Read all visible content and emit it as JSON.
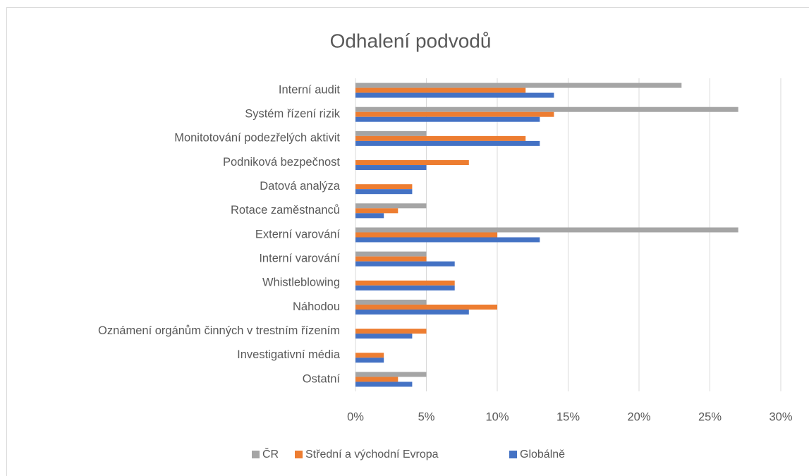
{
  "chart_data": {
    "type": "hbar",
    "title": "Odhalení podvodů",
    "categories": [
      "Interní audit",
      "Systém řízení rizik",
      "Monitotování podezřelých aktivit",
      "Podniková bezpečnost",
      "Datová analýza",
      "Rotace zaměstnanců",
      "Externí varování",
      "Interní varování",
      "Whistleblowing",
      "Náhodou",
      "Oznámení orgánům činných v trestním řízením",
      "Investigativní média",
      "Ostatní"
    ],
    "series": [
      {
        "name": "ČR",
        "color": "#a5a5a5",
        "values": [
          23,
          27,
          5,
          0,
          0,
          5,
          27,
          5,
          0,
          5,
          0,
          0,
          5
        ]
      },
      {
        "name": "Střední a východní Evropa",
        "color": "#ed7d31",
        "values": [
          12,
          14,
          12,
          8,
          4,
          3,
          10,
          5,
          7,
          10,
          5,
          2,
          3
        ]
      },
      {
        "name": "Globálně",
        "color": "#4472c4",
        "values": [
          14,
          13,
          13,
          5,
          4,
          2,
          13,
          7,
          7,
          8,
          4,
          2,
          4
        ]
      }
    ],
    "xlim": [
      0,
      30
    ],
    "xticks": [
      {
        "value": 0,
        "label": "0%"
      },
      {
        "value": 5,
        "label": "5%"
      },
      {
        "value": 10,
        "label": "10%"
      },
      {
        "value": 15,
        "label": "15%"
      },
      {
        "value": 20,
        "label": "20%"
      },
      {
        "value": 25,
        "label": "25%"
      },
      {
        "value": 30,
        "label": "30%"
      }
    ],
    "grid": true,
    "legend": "bottom"
  }
}
